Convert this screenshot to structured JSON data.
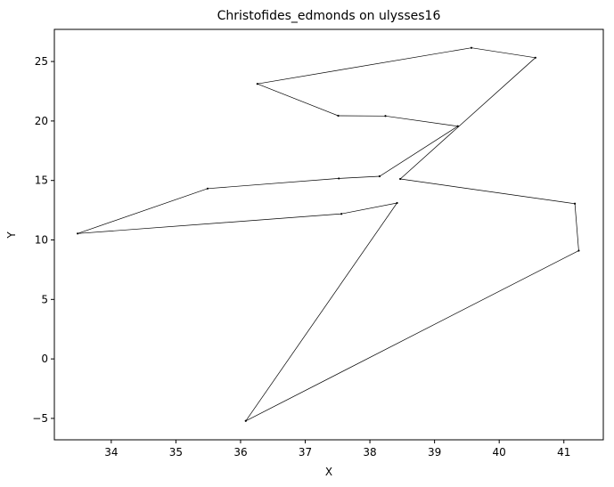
{
  "chart_data": {
    "type": "line",
    "title": "Christofides_edmonds on ulysses16",
    "xlabel": "X",
    "ylabel": "Y",
    "xlim": [
      33.12,
      41.61
    ],
    "ylim": [
      -6.8,
      27.7
    ],
    "x_ticks": [
      34,
      35,
      36,
      37,
      38,
      39,
      40,
      41
    ],
    "y_ticks": [
      -5,
      0,
      5,
      10,
      15,
      20,
      25
    ],
    "grid": false,
    "series": [
      {
        "closed": true,
        "color": "#000000",
        "points": [
          [
            36.26,
            23.12
          ],
          [
            39.57,
            26.15
          ],
          [
            40.56,
            25.32
          ],
          [
            38.47,
            15.13
          ],
          [
            41.17,
            13.05
          ],
          [
            41.23,
            9.1
          ],
          [
            36.08,
            -5.21
          ],
          [
            38.42,
            13.11
          ],
          [
            37.56,
            12.19
          ],
          [
            33.48,
            10.54
          ],
          [
            35.49,
            14.32
          ],
          [
            37.52,
            15.17
          ],
          [
            38.15,
            15.35
          ],
          [
            39.36,
            19.56
          ],
          [
            38.24,
            20.42
          ],
          [
            37.51,
            20.44
          ]
        ]
      }
    ]
  }
}
